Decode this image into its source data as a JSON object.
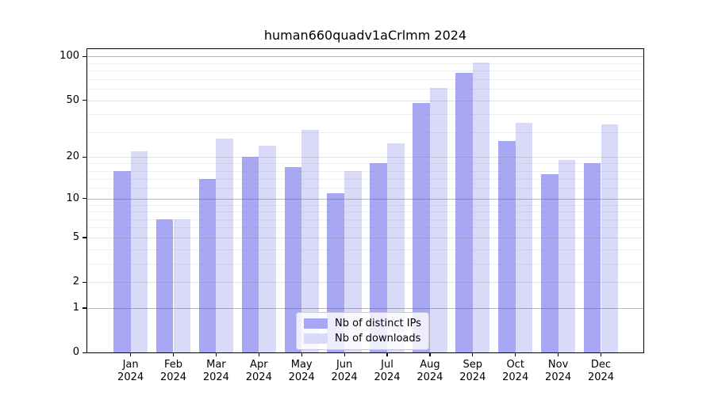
{
  "chart_data": {
    "type": "bar",
    "title": "human660quadv1aCrlmm 2024",
    "categories": [
      "Jan",
      "Feb",
      "Mar",
      "Apr",
      "May",
      "Jun",
      "Jul",
      "Aug",
      "Sep",
      "Oct",
      "Nov",
      "Dec"
    ],
    "year_label": "2024",
    "series": [
      {
        "name": "Nb of distinct IPs",
        "color": "#a7a7f3",
        "values": [
          16,
          7,
          14,
          20,
          17,
          11,
          18,
          48,
          77,
          26,
          15,
          18
        ]
      },
      {
        "name": "Nb of downloads",
        "color": "#d9d9f8",
        "values": [
          22,
          7,
          27,
          24,
          31,
          16,
          25,
          61,
          91,
          35,
          19,
          34
        ]
      }
    ],
    "yscale": "log10(1+x)",
    "ylim": [
      0,
      112
    ],
    "yticks": [
      0,
      1,
      2,
      5,
      10,
      20,
      50,
      100
    ],
    "grid": {
      "major": [
        1,
        10,
        100
      ],
      "mid": [
        2,
        5,
        20,
        50
      ],
      "minor": [
        3,
        4,
        6,
        7,
        8,
        9,
        12,
        14,
        16,
        18,
        30,
        40,
        60,
        70,
        80,
        90
      ]
    },
    "legend_position": "bottom-center",
    "xlabel": "",
    "ylabel": ""
  }
}
